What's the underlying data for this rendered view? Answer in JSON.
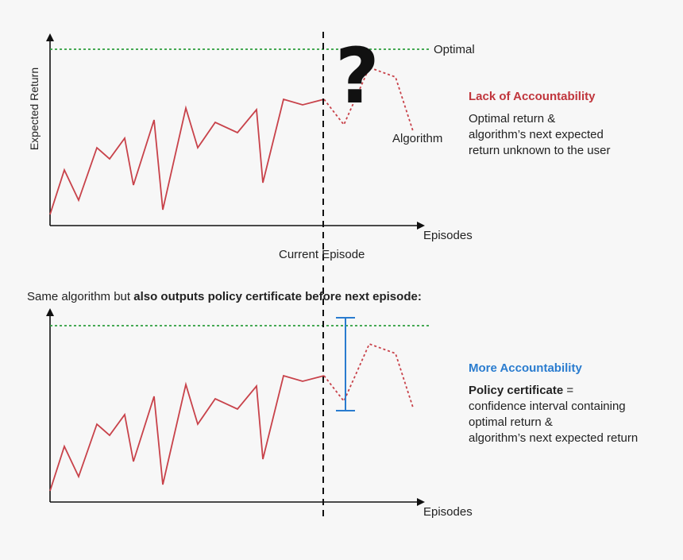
{
  "labels": {
    "optimal": "Optimal",
    "y_axis": "Expected Return",
    "x_axis": "Episodes",
    "current_episode": "Current Episode",
    "algorithm": "Algorithm",
    "question": "?"
  },
  "subtitle": {
    "plain": "Same algorithm but ",
    "bold": "also outputs policy certificate before next episode:"
  },
  "panel_top": {
    "heading": "Lack of Accountability",
    "line1": "Optimal return &",
    "line2": "algorithm’s next expected",
    "line3": "return  unknown to the user"
  },
  "panel_bottom": {
    "heading": "More Accountability",
    "term": "Policy certificate",
    "term_suffix": " =",
    "line1": "confidence interval containing",
    "line2": "optimal return &",
    "line3": "algorithm’s next expected return"
  },
  "colors": {
    "curve": "#c8424a",
    "optimal_line": "#2e9e3e",
    "interval": "#2a7ccf",
    "axis": "#111111",
    "heading_red": "#c0353c",
    "heading_blue": "#2a7ccf"
  }
}
